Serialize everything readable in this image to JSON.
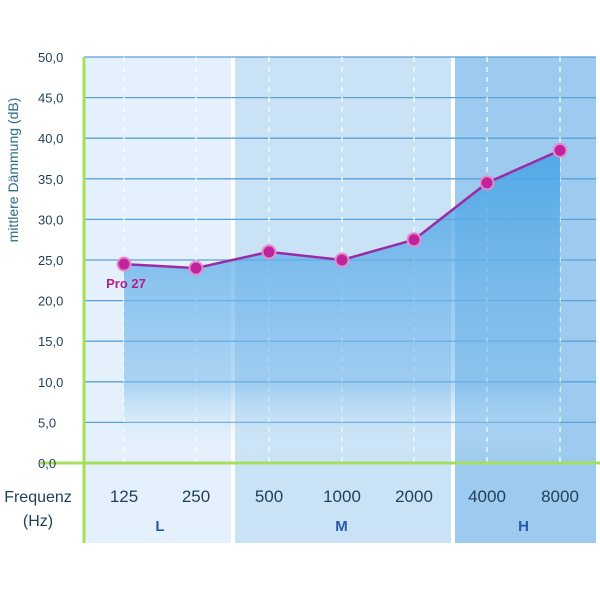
{
  "chart_data": {
    "type": "line",
    "ylabel": "mittlere Dämmung (dB)",
    "xlabel": "Frequenz (Hz)",
    "xlabel_lines": [
      "Frequenz",
      "(Hz)"
    ],
    "categories": [
      "125",
      "250",
      "500",
      "1000",
      "2000",
      "4000",
      "8000"
    ],
    "ylim": [
      0,
      50
    ],
    "yticks": [
      "0,0",
      "5,0",
      "10,0",
      "15,0",
      "20,0",
      "25,0",
      "30,0",
      "35,0",
      "40,0",
      "45,0",
      "50,0"
    ],
    "grid": true,
    "series": [
      {
        "name": "Pro 27",
        "values": [
          24.5,
          24.0,
          26.0,
          25.0,
          27.5,
          34.5,
          38.5
        ]
      }
    ],
    "bands": [
      {
        "label": "L",
        "categories": [
          "125",
          "250"
        ]
      },
      {
        "label": "M",
        "categories": [
          "500",
          "1000",
          "2000"
        ]
      },
      {
        "label": "H",
        "categories": [
          "4000",
          "8000"
        ]
      }
    ],
    "colors": {
      "line": "#9b2aa6",
      "marker": "#c0249a",
      "series_label": "#b1208c",
      "axis": "#a6e05a",
      "grid": "#5aa0d8",
      "band_L": "#e4f0fb",
      "band_M": "#c9e2f6",
      "band_H": "#9ccbef",
      "fill": "#4ea6e6"
    }
  }
}
